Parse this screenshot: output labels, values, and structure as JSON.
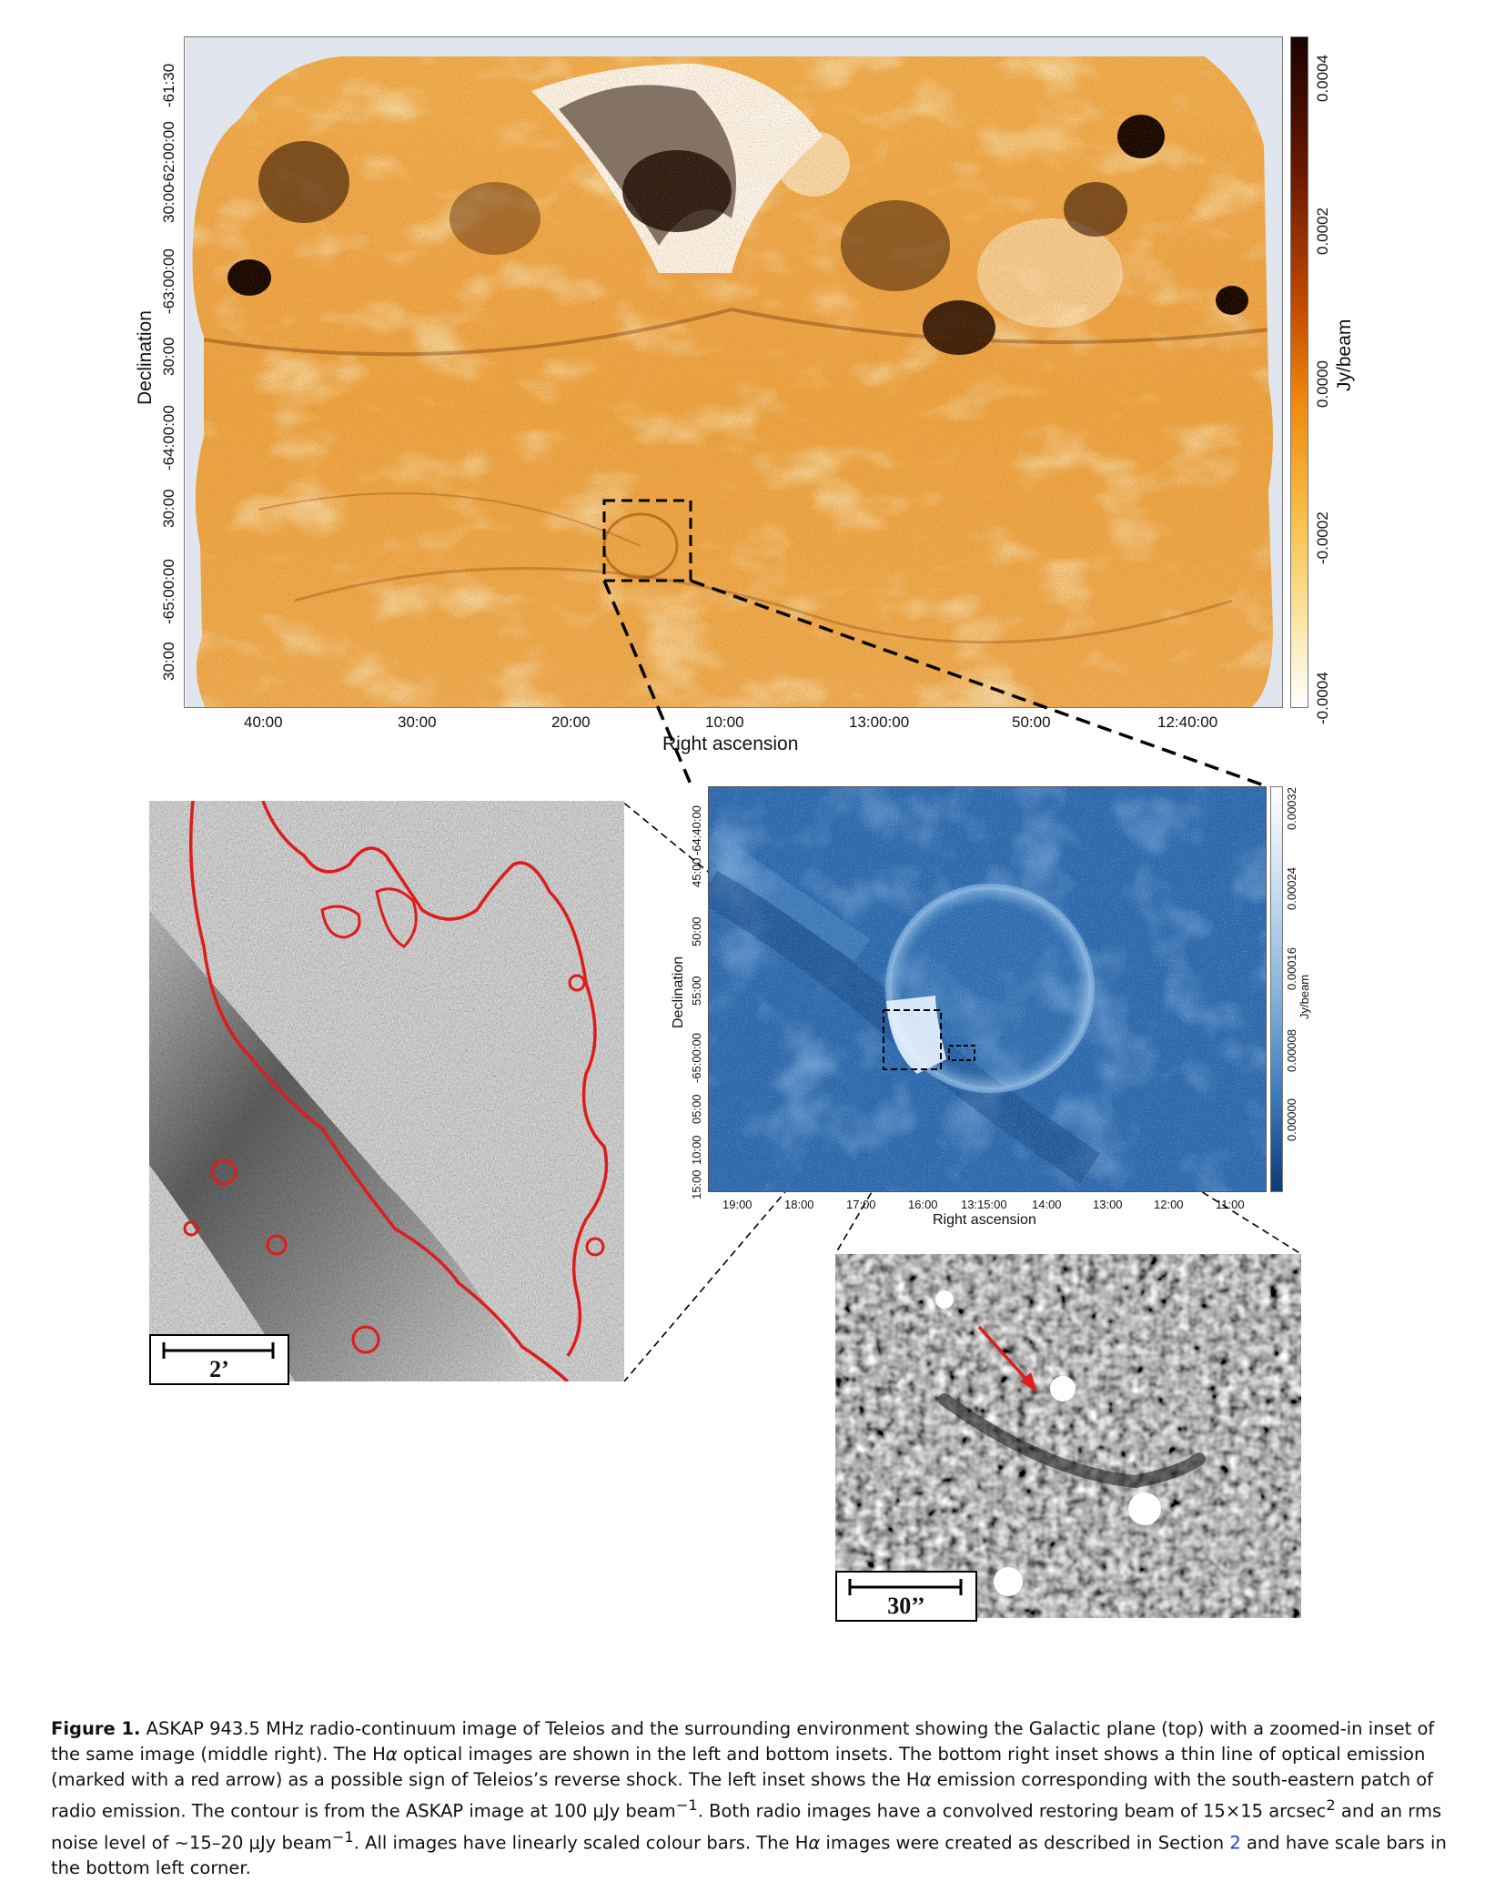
{
  "top_panel": {
    "ylabel": "Declination",
    "xlabel": "Right ascension",
    "dec_ticks": [
      "-61:30",
      "-62:00:00",
      "30:00",
      "-63:00:00",
      "30:00",
      "-64:00:00",
      "30:00",
      "-65:00:00",
      "30:00"
    ],
    "ra_ticks": [
      "40:00",
      "30:00",
      "20:00",
      "10:00",
      "13:00:00",
      "50:00",
      "12:40:00"
    ],
    "colorbar_label": "Jy/beam",
    "colorbar_ticks": [
      "0.0004",
      "0.0002",
      "0.0000",
      "-0.0002",
      "-0.0004"
    ]
  },
  "middle_panel": {
    "ylabel": "Declination",
    "xlabel": "Right ascension",
    "dec_ticks": [
      "-64:40:00",
      "45:00",
      "50:00",
      "55:00",
      "-65:00:00",
      "05:00",
      "10:00",
      "15:00"
    ],
    "ra_ticks": [
      "19:00",
      "18:00",
      "17:00",
      "16:00",
      "13:15:00",
      "14:00",
      "13:00",
      "12:00",
      "11:00"
    ],
    "colorbar_label": "Jy/beam",
    "colorbar_ticks": [
      "0.00032",
      "0.00024",
      "0.00016",
      "0.00008",
      "0.00000"
    ]
  },
  "left_inset": {
    "scale_label": "2’"
  },
  "bottom_inset": {
    "scale_label": "30’’"
  },
  "caption": {
    "label": "Figure 1.",
    "text_1": " ASKAP 943.5 MHz radio-continuum image of Teleios and the surrounding environment showing the Galactic plane (top) with a zoomed-in inset of the same image (middle right). The H",
    "alpha": "α",
    "text_2": " optical images are shown in the left and bottom insets. The bottom right inset shows a thin line of optical emission (marked with a red arrow) as a possible sign of Teleios’s reverse shock. The left inset shows the H",
    "text_3": " emission corresponding with the south-eastern patch of radio emission. The contour is from the ASKAP image at 100 ",
    "mu": "μ",
    "text_4": "Jy beam",
    "sup_m1": "−1",
    "text_5": ". Both radio images have a convolved restoring beam of 15",
    "times": "×",
    "text_6": "15 arcsec",
    "sup_2": "2",
    "text_7": " and an rms noise level of ",
    "sim": "∼",
    "text_8": "15–20 ",
    "text_9": ". All images have linearly scaled colour bars. The H",
    "text_10": " images were created as described in Section ",
    "section_ref": "2",
    "text_11": " and have scale bars in the bottom left corner."
  }
}
